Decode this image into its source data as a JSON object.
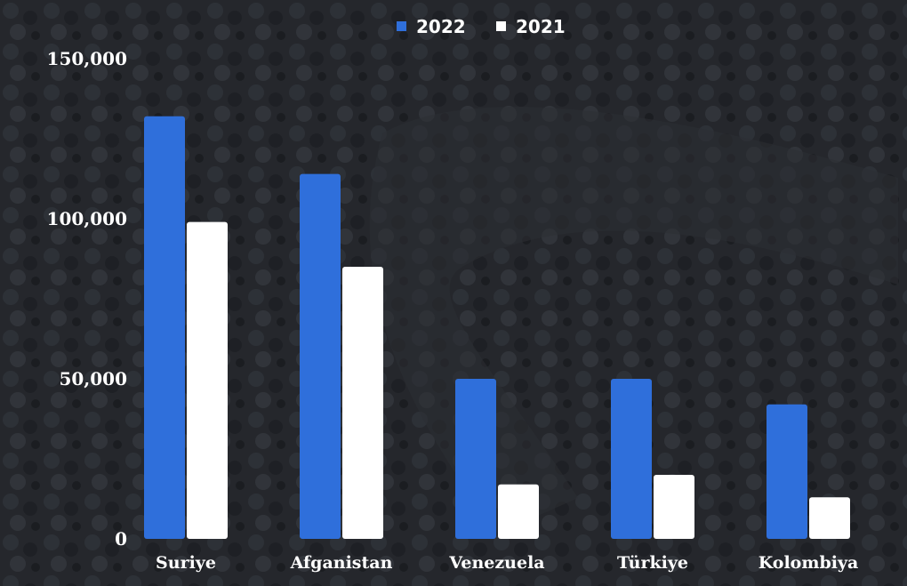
{
  "chart_data": {
    "type": "bar",
    "categories": [
      "Suriye",
      "Afganistan",
      "Venezuela",
      "Türkiye",
      "Kolombiya"
    ],
    "series": [
      {
        "name": "2022",
        "color": "#2f6fdb",
        "values": [
          132000,
          114000,
          50000,
          50000,
          42000
        ]
      },
      {
        "name": "2021",
        "color": "#ffffff",
        "values": [
          99000,
          85000,
          17000,
          20000,
          13000
        ]
      }
    ],
    "yticks": [
      "0",
      "50,000",
      "100,000",
      "150,000"
    ],
    "ytick_values": [
      0,
      50000,
      100000,
      150000
    ],
    "ylim": [
      0,
      150000
    ],
    "legend_position": "top-center",
    "grid": false,
    "background": "photo of a crowd of people waiting in a queue behind fences"
  }
}
